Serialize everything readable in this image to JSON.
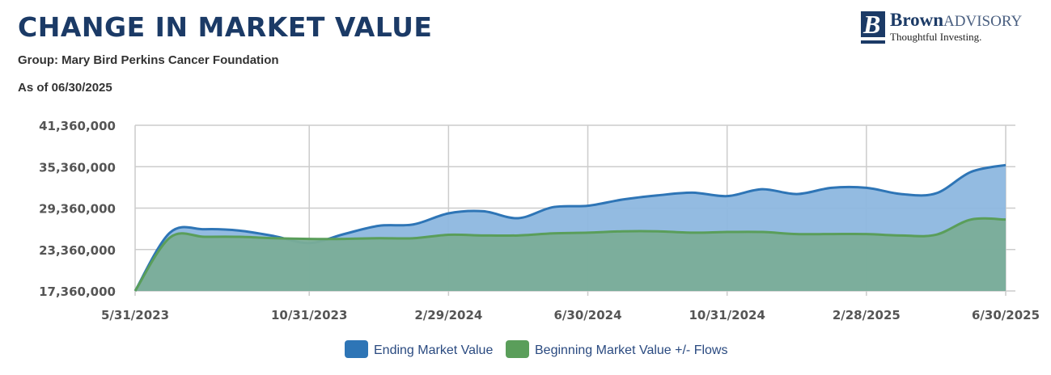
{
  "header": {
    "title": "CHANGE IN MARKET VALUE",
    "group": "Group: Mary Bird Perkins Cancer Foundation",
    "as_of": "As of 06/30/2025"
  },
  "logo": {
    "mark_letter": "B",
    "name_bold": "Brown",
    "name_light": "ADVISORY",
    "tagline": "Thoughtful Investing."
  },
  "colors": {
    "title": "#1b3a66",
    "ending_line": "#2e75b6",
    "ending_fill": "#8db7df",
    "beginning_line": "#5a9e5a",
    "beginning_fill": "#7aad98",
    "grid": "#cccccc"
  },
  "chart_data": {
    "type": "area",
    "title": "",
    "xlabel": "",
    "ylabel": "",
    "ylim": [
      17360000,
      41360000
    ],
    "yticks": [
      "17,360,000",
      "23,360,000",
      "29,360,000",
      "35,360,000",
      "41,360,000"
    ],
    "ytick_values": [
      17360000,
      23360000,
      29360000,
      35360000,
      41360000
    ],
    "xticks": [
      "5/31/2023",
      "10/31/2023",
      "2/29/2024",
      "6/30/2024",
      "10/31/2024",
      "2/28/2025",
      "6/30/2025"
    ],
    "x": [
      "5/31/2023",
      "6/30/2023",
      "7/31/2023",
      "8/31/2023",
      "9/30/2023",
      "10/31/2023",
      "11/30/2023",
      "12/31/2023",
      "1/31/2024",
      "2/29/2024",
      "3/31/2024",
      "4/30/2024",
      "5/31/2024",
      "6/30/2024",
      "7/31/2024",
      "8/31/2024",
      "9/30/2024",
      "10/31/2024",
      "11/30/2024",
      "12/31/2024",
      "1/31/2025",
      "2/28/2025",
      "3/31/2025",
      "4/30/2025",
      "5/31/2025",
      "6/30/2025"
    ],
    "series": [
      {
        "name": "Ending Market Value",
        "values": [
          17360000,
          25800000,
          26300000,
          26100000,
          25300000,
          24300000,
          25600000,
          26800000,
          27000000,
          28600000,
          28900000,
          27900000,
          29500000,
          29700000,
          30600000,
          31200000,
          31600000,
          31100000,
          32100000,
          31400000,
          32300000,
          32300000,
          31400000,
          31500000,
          34600000,
          35600000
        ]
      },
      {
        "name": "Beginning Market Value +/- Flows",
        "values": [
          17360000,
          25100000,
          25200000,
          25200000,
          25000000,
          24900000,
          24900000,
          25000000,
          25000000,
          25500000,
          25400000,
          25400000,
          25700000,
          25800000,
          26000000,
          26000000,
          25800000,
          25900000,
          25900000,
          25600000,
          25600000,
          25600000,
          25400000,
          25500000,
          27700000,
          27700000
        ]
      }
    ],
    "legend_position": "bottom-center",
    "grid": true
  }
}
